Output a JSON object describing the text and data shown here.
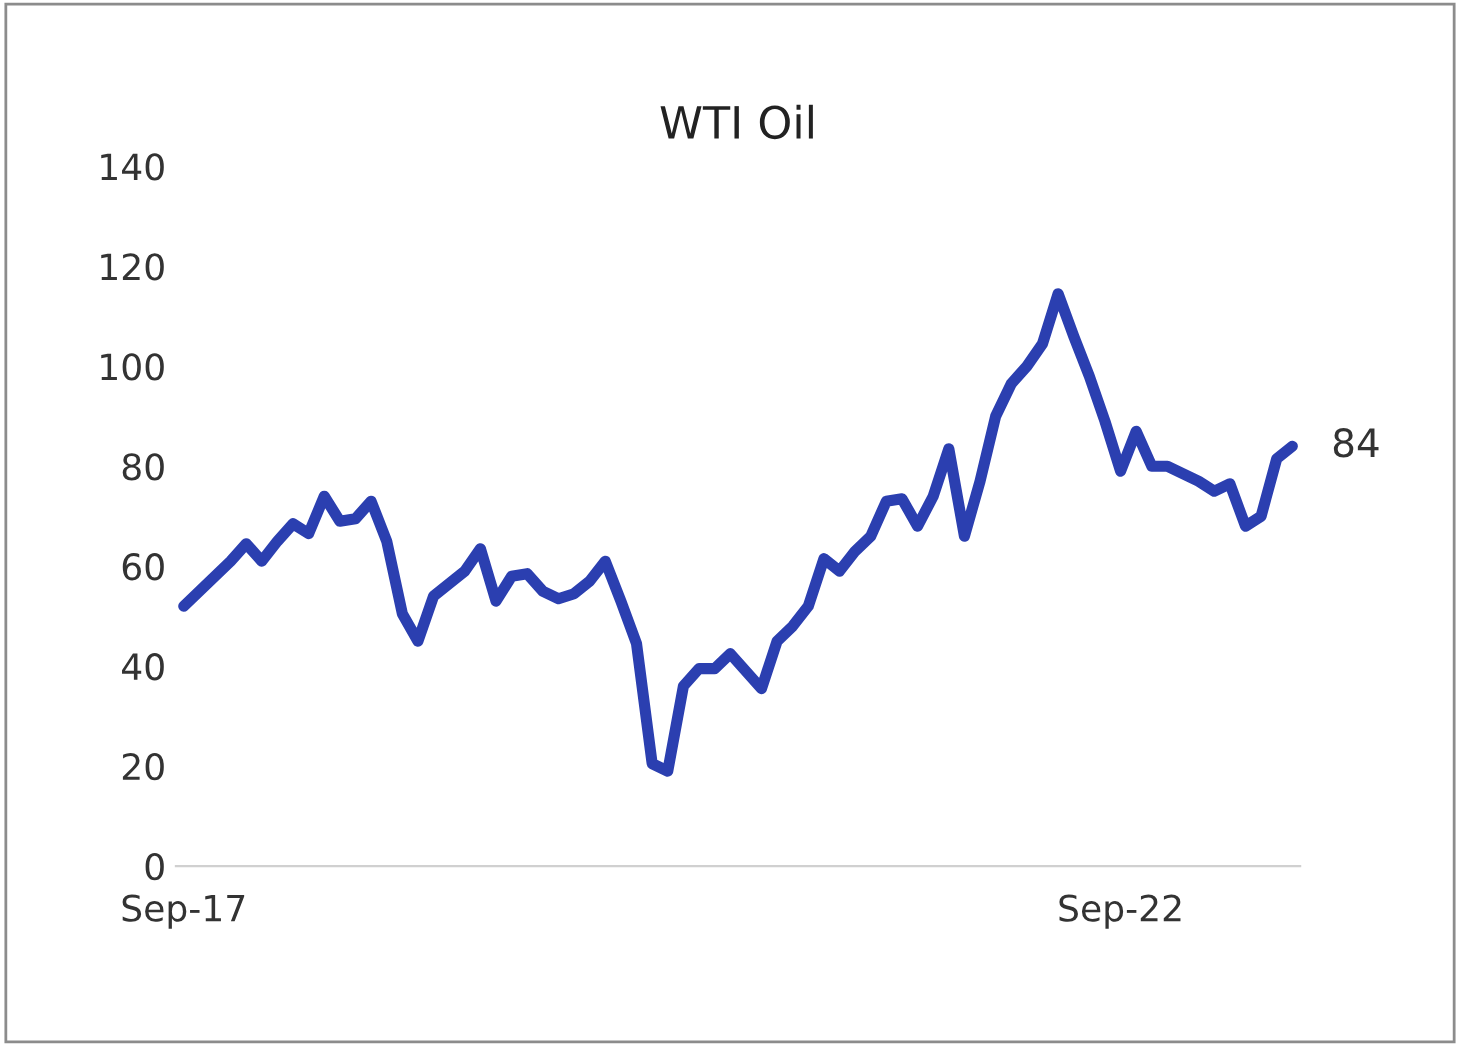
{
  "chart_data": {
    "type": "line",
    "title": "WTI Oil",
    "categories": [
      "Sep-17",
      null,
      null,
      null,
      null,
      null,
      null,
      null,
      null,
      null,
      null,
      null,
      null,
      null,
      null,
      null,
      null,
      null,
      null,
      null,
      null,
      null,
      null,
      null,
      null,
      null,
      null,
      null,
      null,
      null,
      null,
      null,
      null,
      null,
      null,
      null,
      null,
      null,
      null,
      null,
      null,
      null,
      null,
      null,
      null,
      null,
      null,
      null,
      null,
      null,
      null,
      null,
      null,
      null,
      null,
      null,
      null,
      null,
      null,
      null,
      "Sep-22",
      null,
      null,
      null,
      null,
      null,
      null,
      null,
      null,
      null,
      null,
      null
    ],
    "series": [
      {
        "color": "#2b3fb0",
        "values": [
          52,
          55,
          58,
          61,
          64.5,
          61,
          65,
          68.5,
          66.5,
          74,
          69,
          69.5,
          73,
          65,
          50.5,
          45,
          54,
          56.5,
          59,
          63.5,
          53,
          58,
          58.5,
          55,
          53.5,
          54.5,
          57,
          61,
          53,
          44.5,
          20.5,
          19,
          36,
          39.5,
          39.5,
          42.5,
          39,
          35.5,
          45,
          48,
          52,
          61.5,
          59,
          63,
          66,
          73,
          73.5,
          68,
          74,
          83.5,
          66,
          77,
          90,
          96.5,
          100,
          104.5,
          114.5,
          106,
          98,
          89,
          79,
          87,
          80,
          80,
          78.5,
          77,
          75,
          76.5,
          68,
          70,
          81.5,
          84
        ],
        "value_labels": [
          null,
          null,
          null,
          null,
          null,
          null,
          null,
          null,
          null,
          null,
          null,
          null,
          null,
          null,
          null,
          null,
          null,
          null,
          null,
          null,
          null,
          null,
          null,
          null,
          null,
          null,
          null,
          null,
          null,
          null,
          null,
          null,
          null,
          null,
          null,
          null,
          null,
          null,
          null,
          null,
          null,
          null,
          null,
          null,
          null,
          null,
          null,
          null,
          null,
          null,
          null,
          null,
          null,
          null,
          null,
          null,
          null,
          null,
          null,
          null,
          null,
          null,
          null,
          null,
          null,
          null,
          null,
          null,
          null,
          null,
          null,
          "84"
        ]
      }
    ],
    "ylim": [
      0,
      140
    ],
    "yticks": [
      0,
      20,
      40,
      60,
      80,
      100,
      120,
      140
    ],
    "grid": false,
    "line_style": "solid",
    "marker": "none"
  }
}
